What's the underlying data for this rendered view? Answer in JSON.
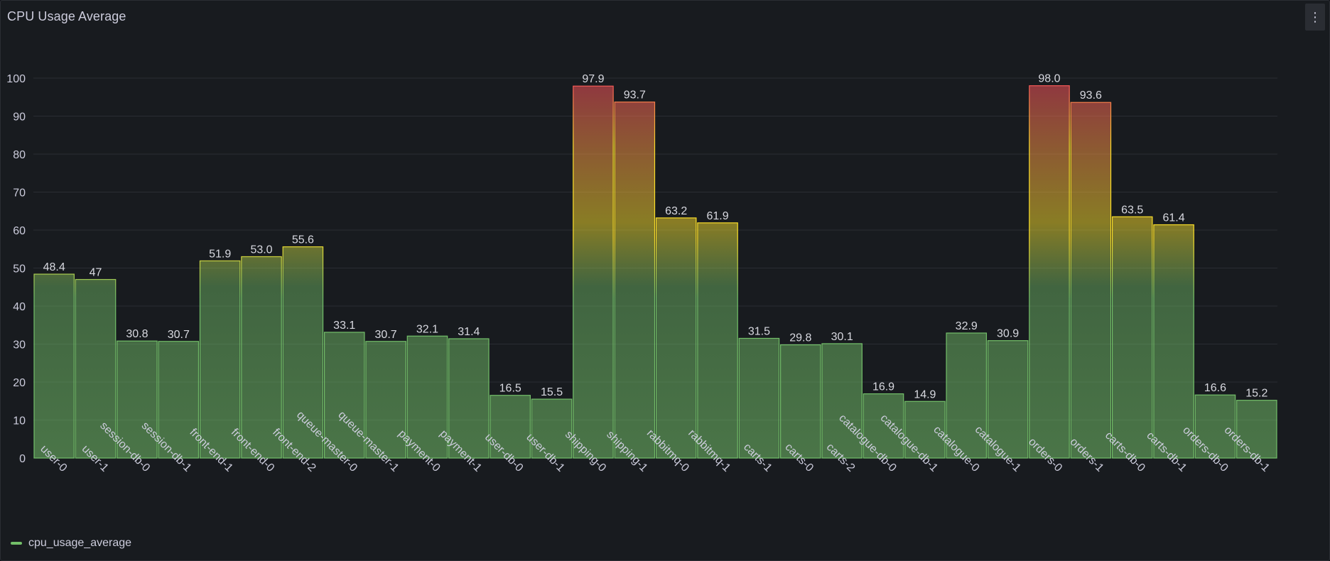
{
  "panel": {
    "title": "CPU Usage Average",
    "menu_icon": "vertical-dots-icon"
  },
  "legend": {
    "label": "cpu_usage_average",
    "color": "#73bf69"
  },
  "colors": {
    "low": "#73bf69",
    "mid": "#fade2a",
    "high": "#f2495c",
    "grid": "#2a2d33",
    "text": "#ccccdc"
  },
  "chart_data": {
    "type": "bar",
    "categories": [
      "user-0",
      "user-1",
      "session-db-0",
      "session-db-1",
      "front-end-1",
      "front-end-0",
      "front-end-2",
      "queue-master-0",
      "queue-master-1",
      "payment-0",
      "payment-1",
      "user-db-0",
      "user-db-1",
      "shipping-0",
      "shipping-1",
      "rabbitmq-0",
      "rabbitmq-1",
      "carts-1",
      "carts-0",
      "carts-2",
      "catalogue-db-0",
      "catalogue-db-1",
      "catalogue-0",
      "catalogue-1",
      "orders-0",
      "orders-1",
      "carts-db-0",
      "carts-db-1",
      "orders-db-0",
      "orders-db-1"
    ],
    "values": [
      48.4,
      47,
      30.8,
      30.7,
      51.9,
      53.0,
      55.6,
      33.1,
      30.7,
      32.1,
      31.4,
      16.5,
      15.5,
      97.9,
      93.7,
      63.2,
      61.9,
      31.5,
      29.8,
      30.1,
      16.9,
      14.9,
      32.9,
      30.9,
      98.0,
      93.6,
      63.5,
      61.4,
      16.6,
      15.2
    ],
    "value_labels": [
      "48.4",
      "47",
      "30.8",
      "30.7",
      "51.9",
      "53.0",
      "55.6",
      "33.1",
      "30.7",
      "32.1",
      "31.4",
      "16.5",
      "15.5",
      "97.9",
      "93.7",
      "63.2",
      "61.9",
      "31.5",
      "29.8",
      "30.1",
      "16.9",
      "14.9",
      "32.9",
      "30.9",
      "98.0",
      "93.6",
      "63.5",
      "61.4",
      "16.6",
      "15.2"
    ],
    "yticks": [
      "0",
      "10",
      "20",
      "30",
      "40",
      "50",
      "60",
      "70",
      "80",
      "90",
      "100"
    ],
    "ylim": [
      0,
      100
    ],
    "series": [
      {
        "name": "cpu_usage_average"
      }
    ],
    "grid": true,
    "legend_position": "bottom-left"
  }
}
